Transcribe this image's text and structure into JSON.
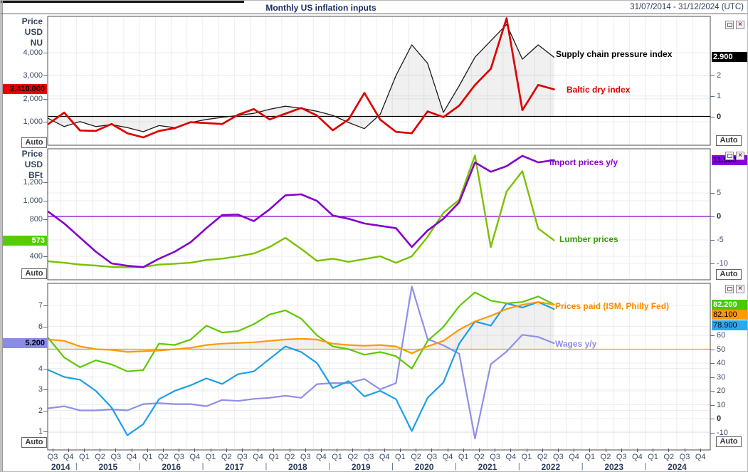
{
  "header": {
    "title": "Monthly US inflation inputs",
    "date_range": "31/07/2014 - 31/12/2024 (UTC)"
  },
  "controls": {
    "auto_label": "Auto"
  },
  "panels": [
    {
      "name": "supply-chain-baltic-panel",
      "unit_lines": [
        "Price",
        "USD",
        "NU"
      ],
      "left_ticks": [
        {
          "label": "4,000",
          "value": 4000
        },
        {
          "label": "3,000",
          "value": 3000
        },
        {
          "label": "2,000",
          "value": 2000
        },
        {
          "label": "1,000",
          "value": 1000
        }
      ],
      "right_ticks": [
        {
          "label": "2",
          "value": 2
        },
        {
          "label": "1",
          "value": 1
        },
        {
          "label": "0",
          "value": 0,
          "bold": true
        }
      ],
      "left_badge": {
        "text": "2,410.000",
        "value": 2410,
        "bg": "#e60000",
        "fg": "#000000",
        "bold": true
      },
      "right_badges": [
        {
          "text": "2.900",
          "value": 2.9,
          "bg": "#000000",
          "fg": "#ffffff",
          "bold": true
        }
      ]
    },
    {
      "name": "import-lumber-panel",
      "unit_lines": [
        "Price",
        "USD",
        "BFt"
      ],
      "left_ticks": [
        {
          "label": "1,200",
          "value": 1200
        },
        {
          "label": "1,000",
          "value": 1000
        },
        {
          "label": "800",
          "value": 800
        },
        {
          "label": "400",
          "value": 400
        }
      ],
      "right_ticks": [
        {
          "label": "5",
          "value": 5
        },
        {
          "label": "0",
          "value": 0,
          "bold": true
        },
        {
          "label": "-5",
          "value": -5
        },
        {
          "label": "-10",
          "value": -10
        }
      ],
      "left_badge": {
        "text": "573",
        "value": 573,
        "bg": "#55cc00",
        "fg": "#ffffff",
        "bold": true
      },
      "right_badges": [
        {
          "text": "11.980",
          "value": 11.98,
          "bg": "#8800dd",
          "fg": "#000000",
          "bold": true
        }
      ]
    },
    {
      "name": "prices-paid-wages-panel",
      "unit_lines": [],
      "left_ticks": [
        {
          "label": "7",
          "value": 7
        },
        {
          "label": "6",
          "value": 6
        },
        {
          "label": "4",
          "value": 4
        },
        {
          "label": "3",
          "value": 3
        },
        {
          "label": "2",
          "value": 2
        },
        {
          "label": "1",
          "value": 1
        }
      ],
      "right_ticks": [
        {
          "label": "60",
          "value": 60
        },
        {
          "label": "50",
          "value": 50
        },
        {
          "label": "40",
          "value": 40
        },
        {
          "label": "30",
          "value": 30
        },
        {
          "label": "20",
          "value": 20
        },
        {
          "label": "10",
          "value": 10
        },
        {
          "label": "0",
          "value": 0,
          "bold": true
        },
        {
          "label": "-10",
          "value": -10
        }
      ],
      "left_badge": {
        "text": "5.200",
        "value": 5.2,
        "bg": "#8a8aec",
        "fg": "#000000",
        "bold": true
      },
      "right_badges": [
        {
          "text": "82.200",
          "value": 82.2,
          "bg": "#44cc00",
          "fg": "#ffffff",
          "bold": true
        },
        {
          "text": "82.100",
          "value": 82.1,
          "bg": "#ff9900",
          "fg": "#000000",
          "bold": false
        },
        {
          "text": "78.900",
          "value": 78.9,
          "bg": "#29aaee",
          "fg": "#000000",
          "bold": false
        }
      ]
    }
  ],
  "xaxis": {
    "quarter_labels": [
      "Q3",
      "Q4",
      "Q1",
      "Q2",
      "Q3",
      "Q4",
      "Q1",
      "Q2",
      "Q3",
      "Q4",
      "Q1",
      "Q2",
      "Q3",
      "Q4",
      "Q1",
      "Q2",
      "Q3",
      "Q4",
      "Q1",
      "Q2",
      "Q3",
      "Q4",
      "Q1",
      "Q2",
      "Q3",
      "Q4",
      "Q1",
      "Q2",
      "Q3",
      "Q4",
      "Q1",
      "Q2",
      "Q3",
      "Q4",
      "Q1",
      "Q2",
      "Q3",
      "Q4",
      "Q1",
      "Q2",
      "Q3",
      "Q4"
    ],
    "year_labels": [
      "2014",
      "2015",
      "2016",
      "2017",
      "2018",
      "2019",
      "2020",
      "2021",
      "2022",
      "2023",
      "2024"
    ],
    "year_separator": "|"
  },
  "chart_data": {
    "type": "line",
    "title": "Monthly US inflation inputs",
    "x_quarters": [
      "2014-Q3",
      "2014-Q4",
      "2015-Q1",
      "2015-Q2",
      "2015-Q3",
      "2015-Q4",
      "2016-Q1",
      "2016-Q2",
      "2016-Q3",
      "2016-Q4",
      "2017-Q1",
      "2017-Q2",
      "2017-Q3",
      "2017-Q4",
      "2018-Q1",
      "2018-Q2",
      "2018-Q3",
      "2018-Q4",
      "2019-Q1",
      "2019-Q2",
      "2019-Q3",
      "2019-Q4",
      "2020-Q1",
      "2020-Q2",
      "2020-Q3",
      "2020-Q4",
      "2021-Q1",
      "2021-Q2",
      "2021-Q3",
      "2021-Q4",
      "2022-Q1",
      "2022-Q2",
      "2022-Q3"
    ],
    "x_full_range": [
      "2014-Q3",
      "2024-Q4"
    ],
    "grid": true,
    "panels_axes": [
      {
        "left_axis_range": [
          0,
          5500
        ],
        "right_axis_range": [
          -1.4,
          4.9
        ]
      },
      {
        "left_axis_range": [
          150,
          1550
        ],
        "right_axis_range": [
          -13.5,
          14.4
        ]
      },
      {
        "left_axis_range": [
          0.1,
          8.0
        ],
        "right_axis_range": [
          -22,
          97
        ]
      }
    ],
    "ref_lines": [
      {
        "panel": 0,
        "axis": "right",
        "value": 0,
        "color": "#000000"
      },
      {
        "panel": 1,
        "axis": "right",
        "value": 0,
        "color": "#8800cc"
      },
      {
        "panel": 2,
        "axis": "right",
        "value": 50,
        "color": "#ff9900"
      }
    ],
    "series": [
      {
        "id": "supply_chain_pressure_index",
        "label": "Supply chain pressure index",
        "panel": 0,
        "axis": "right",
        "color": "#1a1a1a",
        "width": 1.3,
        "fill_to_ref": true,
        "last_value": 2.9,
        "values": [
          -0.1,
          -0.5,
          -0.25,
          -0.5,
          -0.4,
          -0.55,
          -0.75,
          -0.45,
          -0.55,
          -0.3,
          -0.15,
          -0.05,
          0.05,
          0.15,
          0.35,
          0.5,
          0.4,
          0.25,
          0.05,
          -0.3,
          -0.6,
          0.1,
          2.0,
          3.5,
          2.6,
          0.2,
          1.5,
          2.9,
          3.7,
          4.5,
          2.8,
          3.5,
          2.9
        ]
      },
      {
        "id": "baltic_dry_index",
        "label": "Baltic dry index",
        "panel": 0,
        "axis": "left",
        "color": "#dd0000",
        "width": 2.7,
        "fill_to_ref": false,
        "last_value": 2410,
        "values": [
          900,
          1400,
          620,
          600,
          900,
          500,
          320,
          600,
          720,
          980,
          940,
          900,
          1300,
          1550,
          1100,
          1350,
          1600,
          1270,
          630,
          1100,
          2250,
          1090,
          560,
          500,
          1450,
          1200,
          1700,
          2600,
          3300,
          5500,
          1500,
          2600,
          2410
        ]
      },
      {
        "id": "lumber_prices",
        "label": "Lumber prices",
        "panel": 1,
        "axis": "left",
        "color": "#7cc100",
        "width": 2.4,
        "fill_to_ref": false,
        "last_value": 573,
        "values": [
          345,
          330,
          310,
          300,
          285,
          280,
          285,
          310,
          320,
          330,
          360,
          375,
          400,
          430,
          500,
          600,
          480,
          350,
          375,
          340,
          370,
          400,
          330,
          400,
          610,
          870,
          1010,
          1490,
          500,
          1100,
          1320,
          700,
          573
        ]
      },
      {
        "id": "import_prices_yoy",
        "label": "Import prices y/y",
        "panel": 1,
        "axis": "right",
        "color": "#8400cc",
        "width": 2.6,
        "fill_to_ref": false,
        "last_value": 11.98,
        "values": [
          1.0,
          -1.5,
          -4.5,
          -7.5,
          -10.0,
          -10.5,
          -10.8,
          -9.0,
          -7.5,
          -5.5,
          -2.5,
          0.3,
          0.4,
          -1.0,
          1.5,
          4.5,
          4.7,
          3.3,
          0.2,
          -0.5,
          -1.5,
          -2.0,
          -2.5,
          -6.5,
          -3.0,
          -0.5,
          3.0,
          11.5,
          9.5,
          10.7,
          12.9,
          11.5,
          11.98
        ]
      },
      {
        "id": "wages_yoy",
        "label": "Wages y/y",
        "panel": 2,
        "axis": "left",
        "color": "#8f8fe8",
        "width": 2.2,
        "fill_to_ref": false,
        "last_value": 5.2,
        "values": [
          2.1,
          2.2,
          2.0,
          2.0,
          2.05,
          2.0,
          2.3,
          2.35,
          2.3,
          2.3,
          2.2,
          2.5,
          2.45,
          2.55,
          2.6,
          2.7,
          2.6,
          3.25,
          3.3,
          3.3,
          3.5,
          3.0,
          3.3,
          7.9,
          5.4,
          5.1,
          4.7,
          0.66,
          4.2,
          4.8,
          5.6,
          5.5,
          5.2
        ]
      },
      {
        "id": "prices_paid_blue_line",
        "label": null,
        "panel": 2,
        "axis": "right",
        "color": "#1b9fe8",
        "width": 2.2,
        "fill_to_ref": false,
        "last_value": 78.9,
        "values": [
          35,
          30,
          28,
          20,
          8,
          -12,
          -4,
          14,
          20,
          24,
          29,
          25,
          32,
          34,
          43,
          52,
          48,
          40,
          22,
          27,
          16,
          20,
          14,
          -9,
          15,
          26,
          54,
          70,
          67,
          83,
          80,
          84,
          78.9
        ]
      },
      {
        "id": "prices_paid_green_line",
        "label": null,
        "panel": 2,
        "axis": "right",
        "color": "#5ec800",
        "width": 2.2,
        "fill_to_ref": false,
        "last_value": 82.2,
        "values": [
          58,
          44,
          37,
          42,
          39,
          34,
          35,
          54,
          53,
          57,
          67,
          62,
          63,
          68,
          75,
          78,
          72,
          60,
          52,
          50,
          46,
          48,
          45,
          36,
          56,
          66,
          81,
          91,
          85,
          83,
          84,
          88,
          82.2
        ]
      },
      {
        "id": "prices_paid",
        "label": "Prices paid (ISM, Philly Fed)",
        "panel": 2,
        "axis": "right",
        "color": "#ff9900",
        "width": 2.2,
        "fill_to_ref": true,
        "last_value": 82.1,
        "values": [
          57,
          56,
          52,
          50,
          49.5,
          48,
          48.5,
          49,
          50,
          51,
          53,
          54,
          54.5,
          55,
          56,
          57,
          57.5,
          57,
          54,
          53,
          52.5,
          53,
          52,
          47,
          52,
          56,
          64,
          70,
          74,
          79,
          82,
          84,
          82.1
        ]
      }
    ],
    "label_colors": {
      "supply_chain_pressure_index": "#000000",
      "baltic_dry_index": "#dd0000",
      "import_prices_yoy": "#8800cc",
      "lumber_prices": "#379b00",
      "prices_paid": "#ff8800",
      "wages_yoy": "#8c8cea"
    }
  }
}
